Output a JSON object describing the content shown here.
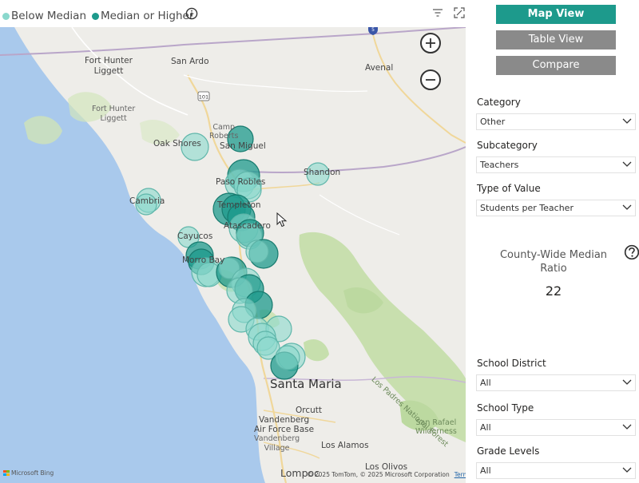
{
  "legend": {
    "items": [
      {
        "label": "Below Median",
        "color": "#8ad8cd"
      },
      {
        "label": "Median or Higher",
        "color": "#1d9a8c"
      }
    ]
  },
  "icons": {
    "info": "info-icon",
    "filter": "filter-icon",
    "focus": "focus-mode-icon",
    "zoom_in": "plus-icon",
    "zoom_out": "minus-icon",
    "dropdown": "chevron-down-icon",
    "help": "question-mark-icon",
    "cursor": "cursor-arrow-icon"
  },
  "map": {
    "labels": [
      {
        "text": "Fort Hunter\nLiggett"
      },
      {
        "text": "San Ardo"
      },
      {
        "text": "Avenal"
      },
      {
        "text": "Fort Hunter\nLiggett"
      },
      {
        "text": "Oak Shores"
      },
      {
        "text": "Camp\nRoberts"
      },
      {
        "text": "San Miguel"
      },
      {
        "text": "Paso Robles"
      },
      {
        "text": "Shandon"
      },
      {
        "text": "Cambria"
      },
      {
        "text": "Templeton"
      },
      {
        "text": "Atascadero"
      },
      {
        "text": "Cayucos"
      },
      {
        "text": "Morro Bay"
      },
      {
        "text": "Santa Maria"
      },
      {
        "text": "Orcutt"
      },
      {
        "text": "Vandenberg\nAir Force Base"
      },
      {
        "text": "Vandenberg\nVillage"
      },
      {
        "text": "Los Alamos"
      },
      {
        "text": "Los Olivos"
      },
      {
        "text": "Lompoc"
      },
      {
        "text": "Los Padres National Forest"
      },
      {
        "text": "San Rafael\nWilderness"
      }
    ],
    "highways": [
      "101",
      "5"
    ],
    "attribution": "© 2025 TomTom, © 2025 Microsoft Corporation",
    "terms_link": "Terms",
    "provider": "Microsoft Bing",
    "below_color": "#8ad8cd",
    "above_color": "#1d9a8c"
  },
  "nav": {
    "map_view": "Map View",
    "table_view": "Table View",
    "compare": "Compare",
    "active_color": "#1d9a8c",
    "inactive_color": "#8a8a8a"
  },
  "filters": {
    "category": {
      "label": "Category",
      "value": "Other"
    },
    "subcategory": {
      "label": "Subcategory",
      "value": "Teachers"
    },
    "type_of_value": {
      "label": "Type of Value",
      "value": "Students per Teacher"
    },
    "school_district": {
      "label": "School District",
      "value": "All"
    },
    "school_type": {
      "label": "School Type",
      "value": "All"
    },
    "grade_levels": {
      "label": "Grade Levels",
      "value": "All"
    }
  },
  "kpi": {
    "title": "County-Wide Median Ratio",
    "value": "22"
  }
}
